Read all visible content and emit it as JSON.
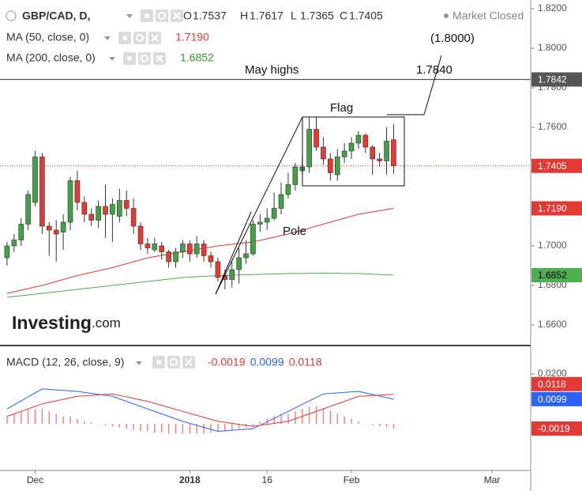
{
  "chart_data": [
    {
      "type": "candlestick",
      "title": "GBP/CAD, D,",
      "ohlc_legend": {
        "labels": [
          "O",
          "H",
          "L",
          "C"
        ],
        "values": [
          1.7537,
          1.7617,
          1.7365,
          1.7405
        ]
      },
      "status": "Market Closed",
      "xlim": [
        -1,
        74.5
      ],
      "xticks": [
        {
          "value": 4,
          "label": "Dec"
        },
        {
          "value": 26,
          "label": "2018"
        },
        {
          "value": 37,
          "label": "16"
        },
        {
          "value": 49,
          "label": "Feb"
        },
        {
          "value": 69,
          "label": "Mar"
        }
      ],
      "ylim": [
        1.6496,
        1.8244
      ],
      "yticks": [
        {
          "value": 1.82,
          "label": "1.8200"
        },
        {
          "value": 1.8,
          "label": "1.8000"
        },
        {
          "value": 1.78,
          "label": "1.7800"
        },
        {
          "value": 1.76,
          "label": "1.7600"
        },
        {
          "value": 1.7,
          "label": "1.7000"
        },
        {
          "value": 1.68,
          "label": "1.6800"
        },
        {
          "value": 1.66,
          "label": "1.6600"
        }
      ],
      "up_color": "#43a047",
      "down_color": "#e53935",
      "open": [
        1.694,
        1.7,
        1.703,
        1.711,
        1.722,
        1.745,
        1.71,
        1.708,
        1.707,
        1.712,
        1.733,
        1.722,
        1.716,
        1.713,
        1.72,
        1.716,
        1.715,
        1.723,
        1.719,
        1.71,
        1.701,
        1.698,
        1.7,
        1.697,
        1.692,
        1.697,
        1.701,
        1.696,
        1.701,
        1.695,
        1.692,
        1.685,
        1.683,
        1.688,
        1.694,
        1.696,
        1.711,
        1.712,
        1.714,
        1.719,
        1.726,
        1.731,
        1.738,
        1.74,
        1.759,
        1.75,
        1.744,
        1.736,
        1.745,
        1.748,
        1.752,
        1.756,
        1.75,
        1.744,
        1.743,
        1.7537
      ],
      "high": [
        1.702,
        1.706,
        1.714,
        1.728,
        1.748,
        1.747,
        1.712,
        1.713,
        1.716,
        1.735,
        1.738,
        1.725,
        1.719,
        1.723,
        1.731,
        1.724,
        1.729,
        1.728,
        1.724,
        1.712,
        1.704,
        1.704,
        1.702,
        1.698,
        1.699,
        1.703,
        1.703,
        1.705,
        1.703,
        1.697,
        1.694,
        1.688,
        1.692,
        1.699,
        1.703,
        1.713,
        1.716,
        1.719,
        1.727,
        1.732,
        1.737,
        1.742,
        1.745,
        1.765,
        1.765,
        1.755,
        1.747,
        1.749,
        1.752,
        1.755,
        1.758,
        1.757,
        1.751,
        1.747,
        1.76,
        1.7617
      ],
      "low": [
        1.69,
        1.697,
        1.7,
        1.708,
        1.72,
        1.706,
        1.695,
        1.692,
        1.698,
        1.708,
        1.718,
        1.712,
        1.71,
        1.709,
        1.704,
        1.702,
        1.712,
        1.715,
        1.706,
        1.698,
        1.696,
        1.697,
        1.693,
        1.689,
        1.689,
        1.694,
        1.692,
        1.694,
        1.692,
        1.689,
        1.682,
        1.678,
        1.679,
        1.681,
        1.691,
        1.695,
        1.707,
        1.708,
        1.713,
        1.716,
        1.724,
        1.728,
        1.736,
        1.737,
        1.748,
        1.741,
        1.733,
        1.733,
        1.742,
        1.744,
        1.749,
        1.747,
        1.736,
        1.74,
        1.736,
        1.7365
      ],
      "close": [
        1.7,
        1.703,
        1.711,
        1.726,
        1.745,
        1.71,
        1.708,
        1.706,
        1.712,
        1.733,
        1.722,
        1.716,
        1.713,
        1.72,
        1.716,
        1.721,
        1.723,
        1.719,
        1.71,
        1.701,
        1.699,
        1.701,
        1.697,
        1.692,
        1.697,
        1.701,
        1.696,
        1.701,
        1.695,
        1.692,
        1.684,
        1.683,
        1.688,
        1.694,
        1.696,
        1.711,
        1.712,
        1.714,
        1.719,
        1.726,
        1.731,
        1.74,
        1.74,
        1.759,
        1.75,
        1.744,
        1.737,
        1.745,
        1.748,
        1.752,
        1.756,
        1.75,
        1.744,
        1.743,
        1.753,
        1.7405
      ],
      "indicators": [
        {
          "name": "MA (50, close, 0)",
          "color": "#e53935",
          "x": [
            0,
            5,
            10,
            15,
            20,
            25,
            30,
            35,
            40,
            45,
            50,
            55
          ],
          "values": [
            1.676,
            1.68,
            1.685,
            1.689,
            1.694,
            1.697,
            1.7,
            1.702,
            1.706,
            1.711,
            1.716,
            1.719
          ],
          "last_value": {
            "value": 1.719,
            "label": "1.7190"
          }
        },
        {
          "name": "MA (200, close, 0)",
          "color": "#4caf50",
          "x": [
            0,
            5,
            10,
            15,
            20,
            25,
            30,
            35,
            40,
            45,
            50,
            55
          ],
          "values": [
            1.674,
            1.676,
            1.678,
            1.68,
            1.682,
            1.684,
            1.685,
            1.6855,
            1.686,
            1.6862,
            1.686,
            1.6852
          ],
          "last_value": 1.6852
        }
      ],
      "annotations": {
        "may_highs": {
          "text": "May highs",
          "value": 1.7842
        },
        "target": {
          "value": 1.784,
          "label": "1.7840"
        },
        "extended_target": {
          "value": 1.8,
          "label": "(1.8000)"
        },
        "flag": "Flag",
        "pole": "Pole"
      },
      "watermark": {
        "name": "Investing",
        "suffix": ".com"
      }
    },
    {
      "type": "macd",
      "title": "MACD (12, 26, close, 9)",
      "ylim": [
        -0.0187,
        0.0314
      ],
      "yticks": [
        {
          "value": 0.02,
          "label": "0.0200"
        }
      ],
      "x": [
        0,
        5,
        10,
        15,
        20,
        25,
        30,
        35,
        40,
        45,
        50,
        55
      ],
      "histogram": {
        "color": "#e53935",
        "values": [
          0.003,
          0.004,
          0.005,
          0.006,
          0.006,
          0.006,
          0.005,
          0.004,
          0.003,
          0.003,
          0.002,
          0.001,
          0.0005,
          0,
          -0.0005,
          -0.001,
          -0.0015,
          -0.002,
          -0.0025,
          -0.003,
          -0.003,
          -0.0035,
          -0.0035,
          -0.004,
          -0.004,
          -0.004,
          -0.004,
          -0.004,
          -0.004,
          -0.0035,
          -0.003,
          -0.003,
          -0.0025,
          -0.002,
          -0.0015,
          -0.001,
          0.001,
          0.002,
          0.003,
          0.004,
          0.004,
          0.005,
          0.006,
          0.007,
          0.007,
          0.006,
          0.005,
          0.004,
          0.003,
          0.002,
          0.001,
          0,
          -0.0005,
          -0.001,
          -0.0015,
          -0.0019
        ]
      },
      "series": [
        {
          "color": "#2962ff",
          "values": [
            0.006,
            0.014,
            0.013,
            0.011,
            0.006,
            0.001,
            -0.003,
            -0.002,
            0.005,
            0.012,
            0.013,
            0.0099
          ]
        },
        {
          "color": "#e53935",
          "values": [
            0.003,
            0.008,
            0.011,
            0.012,
            0.009,
            0.005,
            0.001,
            -0.001,
            0.001,
            0.006,
            0.011,
            0.0118
          ]
        }
      ]
    }
  ]
}
